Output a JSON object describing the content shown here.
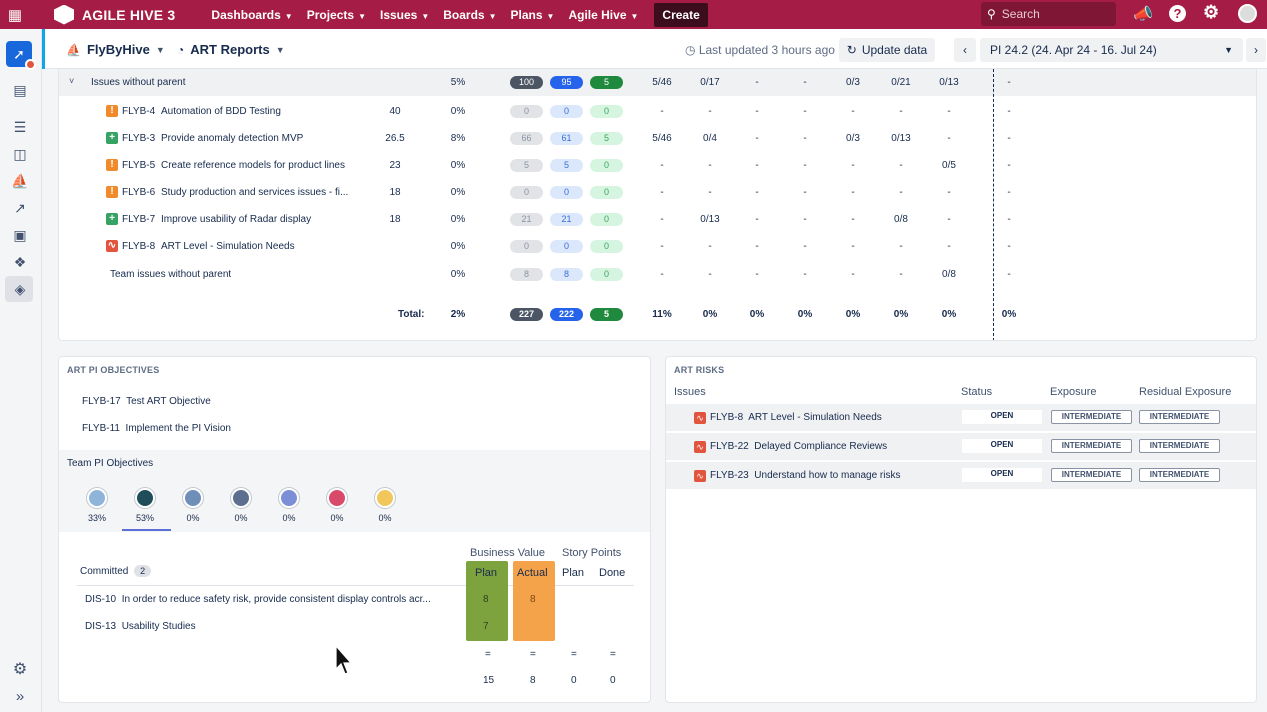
{
  "topbar": {
    "brand": "AGILE HIVE 3",
    "nav": [
      "Dashboards",
      "Projects",
      "Issues",
      "Boards",
      "Plans",
      "Agile Hive"
    ],
    "create_label": "Create",
    "search_placeholder": "Search"
  },
  "subbar": {
    "project": "FlyByHive",
    "report": "ART Reports",
    "last_updated": "Last updated 3 hours ago",
    "update_button": "Update data",
    "pi_selector": "PI 24.2 (24. Apr 24 - 16. Jul 24)"
  },
  "issues_table": {
    "group_label": "Issues without parent",
    "group_pct": "5%",
    "group_pills": [
      "100",
      "95",
      "5"
    ],
    "group_cols": [
      "5/46",
      "0/17",
      "-",
      "-",
      "0/3",
      "0/21",
      "0/13",
      "-"
    ],
    "rows": [
      {
        "type": "orange",
        "key": "FLYB-4",
        "summary": "Automation of BDD Testing",
        "points": "40",
        "pct": "0%",
        "pills": [
          "0",
          "0",
          "0"
        ],
        "cols": [
          "-",
          "-",
          "-",
          "-",
          "-",
          "-",
          "-",
          "-"
        ]
      },
      {
        "type": "green",
        "key": "FLYB-3",
        "summary": "Provide anomaly detection MVP",
        "points": "26.5",
        "pct": "8%",
        "pills": [
          "66",
          "61",
          "5"
        ],
        "cols": [
          "5/46",
          "0/4",
          "-",
          "-",
          "0/3",
          "0/13",
          "-",
          "-"
        ]
      },
      {
        "type": "orange",
        "key": "FLYB-5",
        "summary": "Create reference models for product lines",
        "points": "23",
        "pct": "0%",
        "pills": [
          "5",
          "5",
          "0"
        ],
        "cols": [
          "-",
          "-",
          "-",
          "-",
          "-",
          "-",
          "0/5",
          "-"
        ]
      },
      {
        "type": "orange",
        "key": "FLYB-6",
        "summary": "Study production and services issues - fi...",
        "points": "18",
        "pct": "0%",
        "pills": [
          "0",
          "0",
          "0"
        ],
        "cols": [
          "-",
          "-",
          "-",
          "-",
          "-",
          "-",
          "-",
          "-"
        ]
      },
      {
        "type": "green",
        "key": "FLYB-7",
        "summary": "Improve usability of Radar display",
        "points": "18",
        "pct": "0%",
        "pills": [
          "21",
          "21",
          "0"
        ],
        "cols": [
          "-",
          "0/13",
          "-",
          "-",
          "-",
          "0/8",
          "-",
          "-"
        ]
      },
      {
        "type": "red",
        "key": "FLYB-8",
        "summary": "ART Level - Simulation Needs",
        "points": "",
        "pct": "0%",
        "pills": [
          "0",
          "0",
          "0"
        ],
        "cols": [
          "-",
          "-",
          "-",
          "-",
          "-",
          "-",
          "-",
          "-"
        ]
      }
    ],
    "team_row": {
      "label": "Team issues without parent",
      "pct": "0%",
      "pills": [
        "8",
        "8",
        "0"
      ],
      "cols": [
        "-",
        "-",
        "-",
        "-",
        "-",
        "-",
        "0/8",
        "-"
      ]
    },
    "total": {
      "label": "Total:",
      "pct": "2%",
      "pills": [
        "227",
        "222",
        "5"
      ],
      "cols": [
        "11%",
        "0%",
        "0%",
        "0%",
        "0%",
        "0%",
        "0%",
        "0%"
      ]
    }
  },
  "pi_objectives": {
    "title": "ART PI OBJECTIVES",
    "items": [
      {
        "key": "FLYB-17",
        "label": "Test ART Objective"
      },
      {
        "key": "FLYB-11",
        "label": "Implement the PI Vision"
      }
    ],
    "team_title": "Team PI Objectives",
    "teams": [
      {
        "pct": "33%",
        "color": "#8fb4d9"
      },
      {
        "pct": "53%",
        "color": "#1f4e5a"
      },
      {
        "pct": "0%",
        "color": "#6f8fb8"
      },
      {
        "pct": "0%",
        "color": "#5c6f8f"
      },
      {
        "pct": "0%",
        "color": "#7c8fd6"
      },
      {
        "pct": "0%",
        "color": "#d94a6a"
      },
      {
        "pct": "0%",
        "color": "#f1c75b"
      }
    ],
    "committed_label": "Committed",
    "committed_count": "2",
    "headers": {
      "business_value": "Business Value",
      "story_points": "Story Points",
      "plan": "Plan",
      "actual": "Actual",
      "sp_plan": "Plan",
      "sp_done": "Done"
    },
    "objectives": [
      {
        "key": "DIS-10",
        "label": "In order to reduce safety risk, provide consistent display controls acr...",
        "plan": "8",
        "actual": "8"
      },
      {
        "key": "DIS-13",
        "label": "Usability Studies",
        "plan": "7",
        "actual": ""
      }
    ],
    "eq": [
      "=",
      "=",
      "=",
      "="
    ],
    "totals": [
      "15",
      "8",
      "0",
      "0"
    ]
  },
  "risks": {
    "title": "ART RISKS",
    "headers": [
      "Issues",
      "Status",
      "Exposure",
      "Residual Exposure"
    ],
    "items": [
      {
        "key": "FLYB-8",
        "label": "ART Level - Simulation Needs",
        "status": "OPEN",
        "exposure": "INTERMEDIATE",
        "residual": "INTERMEDIATE"
      },
      {
        "key": "FLYB-22",
        "label": "Delayed Compliance Reviews",
        "status": "OPEN",
        "exposure": "INTERMEDIATE",
        "residual": "INTERMEDIATE"
      },
      {
        "key": "FLYB-23",
        "label": "Understand how to manage risks",
        "status": "OPEN",
        "exposure": "INTERMEDIATE",
        "residual": "INTERMEDIATE"
      }
    ]
  }
}
